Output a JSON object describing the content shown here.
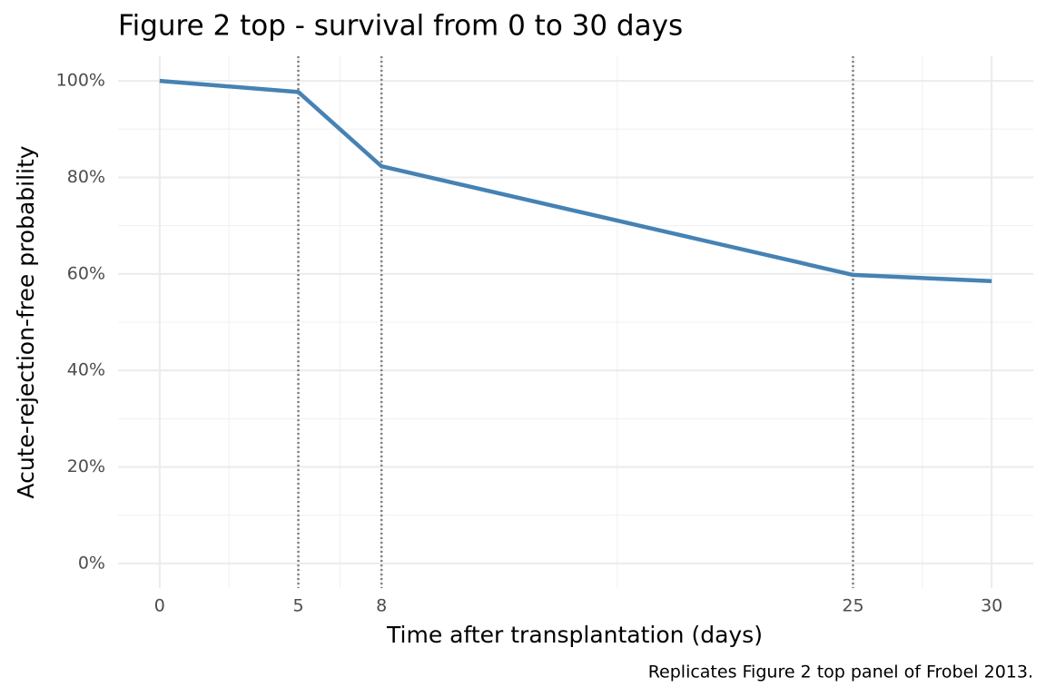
{
  "chart_data": {
    "type": "line",
    "title": "Figure 2 top - survival from 0 to 30 days",
    "x_label": "Time after transplantation (days)",
    "y_label": "Acute-rejection-free probability",
    "caption": "Replicates Figure 2 top panel of Frobel 2013.",
    "x": [
      0,
      5,
      8,
      25,
      30
    ],
    "series": [
      {
        "color": "#4682b4",
        "values": [
          100,
          97.7,
          82.3,
          59.8,
          58.5
        ]
      }
    ],
    "xlim": [
      -1.5,
      31.5
    ],
    "xticks": [
      0,
      5,
      8,
      25,
      30
    ],
    "xminor": [
      2.5,
      6.5,
      16.5,
      27.5
    ],
    "ylim": [
      -5.1,
      105.1
    ],
    "yticks": [
      {
        "value": 0,
        "label": "0%"
      },
      {
        "value": 20,
        "label": "20%"
      },
      {
        "value": 40,
        "label": "40%"
      },
      {
        "value": 60,
        "label": "60%"
      },
      {
        "value": 80,
        "label": "80%"
      },
      {
        "value": 100,
        "label": "100%"
      }
    ],
    "yminor": [
      10,
      30,
      50,
      70,
      90
    ],
    "vlines": [
      5,
      8,
      25
    ],
    "grid": true
  }
}
